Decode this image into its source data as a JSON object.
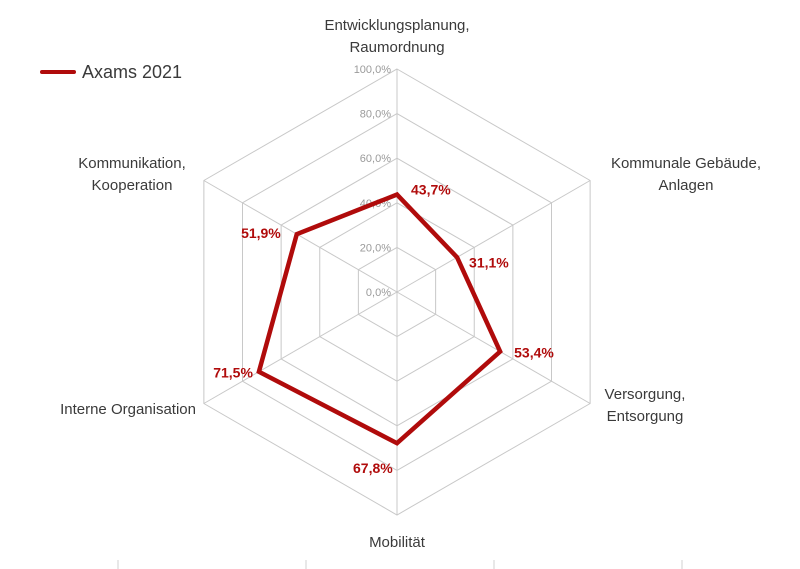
{
  "chart_data": {
    "type": "radar",
    "axes": [
      {
        "label_lines": [
          "Entwicklungsplanung,",
          "Raumordnung"
        ]
      },
      {
        "label_lines": [
          "Kommunale Gebäude,",
          "Anlagen"
        ]
      },
      {
        "label_lines": [
          "Versorgung,",
          "Entsorgung"
        ]
      },
      {
        "label_lines": [
          "Mobilität"
        ]
      },
      {
        "label_lines": [
          "Interne Organisation"
        ]
      },
      {
        "label_lines": [
          "Kommunikation,",
          "Kooperation"
        ]
      }
    ],
    "series": [
      {
        "name": "Axams 2021",
        "values": [
          43.7,
          31.1,
          53.4,
          67.8,
          71.5,
          51.9
        ],
        "value_labels": [
          "43,7%",
          "31,1%",
          "53,4%",
          "67,8%",
          "71,5%",
          "51,9%"
        ],
        "color": "#b00b0b"
      }
    ],
    "rlim": [
      0,
      100
    ],
    "ticks": [
      "0,0%",
      "20,0%",
      "40,0%",
      "60,0%",
      "80,0%",
      "100,0%"
    ],
    "grid": true,
    "legend_position": "top-left",
    "grid_color": "#c8c8c8"
  }
}
